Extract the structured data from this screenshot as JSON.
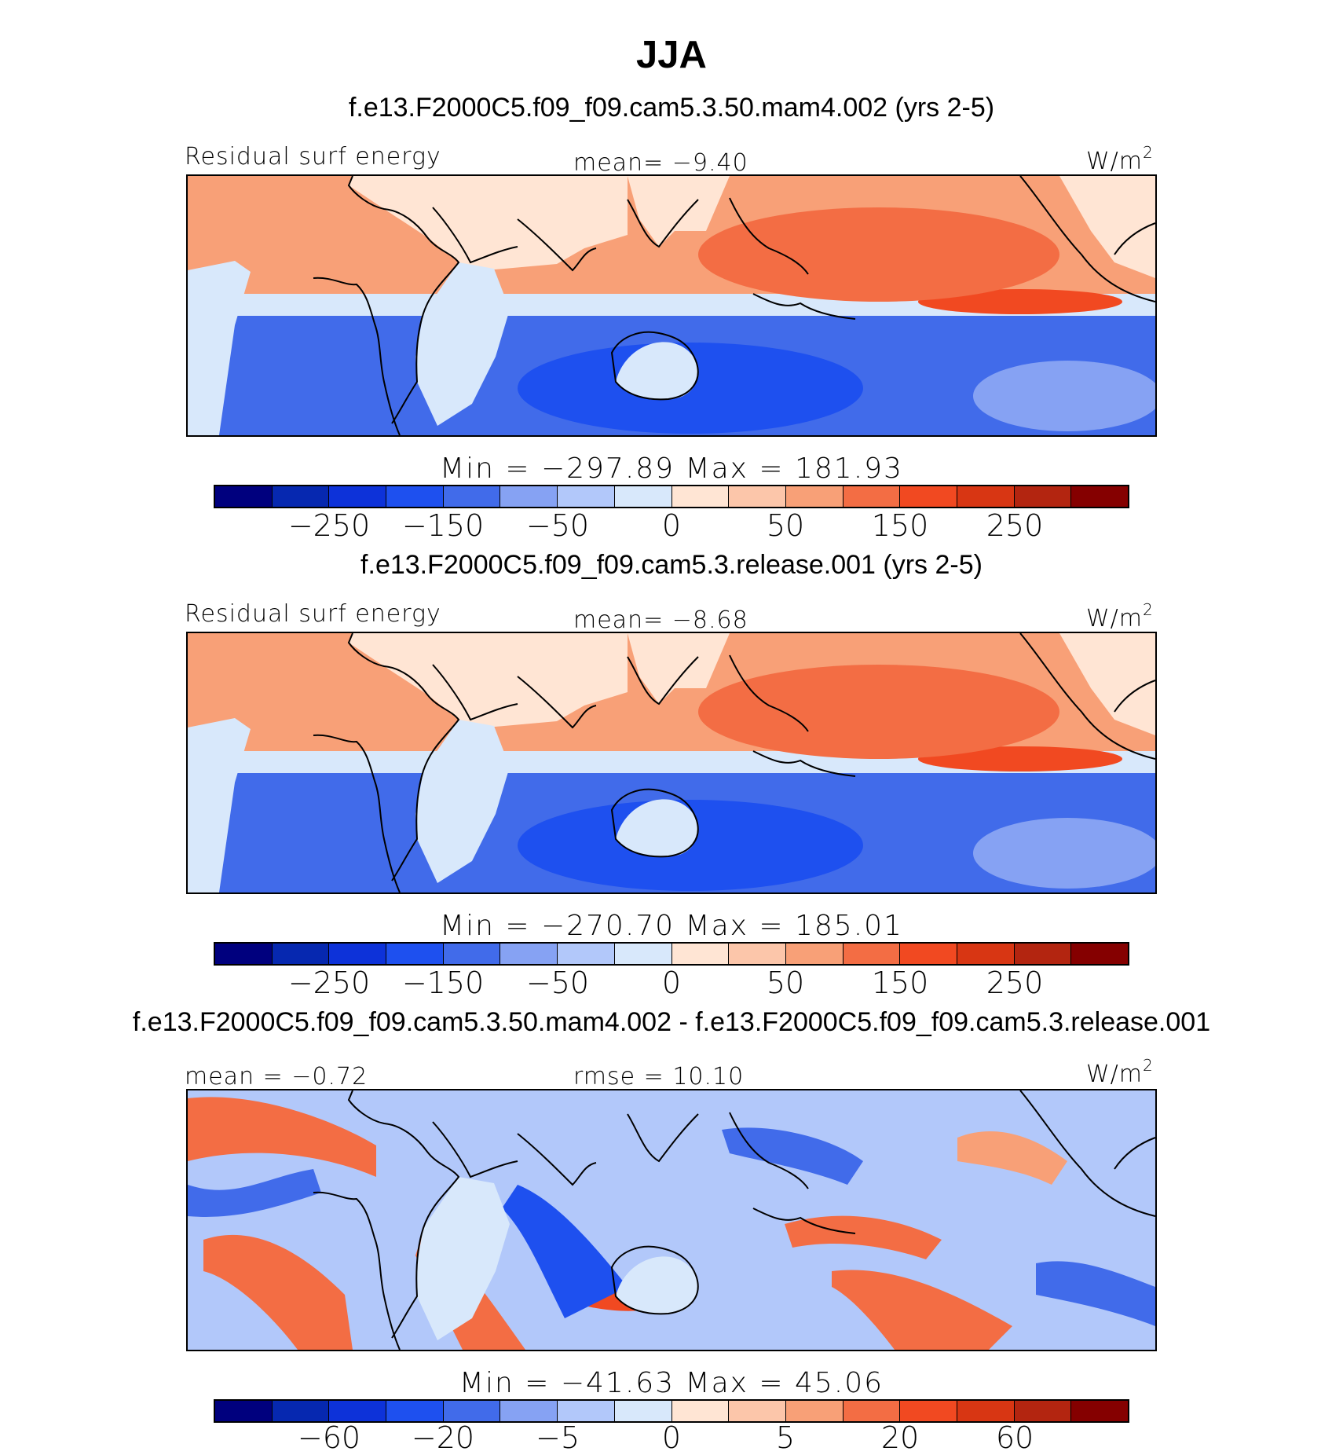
{
  "figure": {
    "season": "JJA"
  },
  "colors": {
    "scale": [
      "#00007e",
      "#0628b0",
      "#0d32d9",
      "#1e50ef",
      "#416bea",
      "#86a2f3",
      "#b2c8fa",
      "#d8e8fb",
      "#ffe5d4",
      "#fcc6aa",
      "#f8a077",
      "#f36d44",
      "#f14921",
      "#d83613",
      "#b32510",
      "#850000"
    ],
    "coast": "#000000",
    "frame": "#000000"
  },
  "panels": [
    {
      "title": "f.e13.F2000C5.f09_f09.cam5.3.50.mam4.002 (yrs 2-5)",
      "left_label": "Residual surf energy",
      "center_label": "mean=  −9.40",
      "units": "W/m",
      "units_sup": "2",
      "minmax": "Min = −297.89 Max = 181.93",
      "colorbar_ticks": [
        "−250",
        "−150",
        "−50",
        "0",
        "50",
        "150",
        "250"
      ],
      "field": "model"
    },
    {
      "title": "f.e13.F2000C5.f09_f09.cam5.3.release.001 (yrs 2-5)",
      "left_label": "Residual surf energy",
      "center_label": "mean=  −8.68",
      "units": "W/m",
      "units_sup": "2",
      "minmax": "Min = −270.70 Max = 185.01",
      "colorbar_ticks": [
        "−250",
        "−150",
        "−50",
        "0",
        "50",
        "150",
        "250"
      ],
      "field": "model"
    },
    {
      "title": "f.e13.F2000C5.f09_f09.cam5.3.50.mam4.002 - f.e13.F2000C5.f09_f09.cam5.3.release.001",
      "left_label": "mean =  −0.72",
      "center_label": "rmse =  10.10",
      "units": "W/m",
      "units_sup": "2",
      "minmax": "Min = −41.63 Max =  45.06",
      "colorbar_ticks": [
        "−60",
        "−20",
        "−5",
        "0",
        "5",
        "20",
        "60"
      ],
      "field": "difference"
    }
  ],
  "chart_data": [
    {
      "type": "heatmap",
      "title": "f.e13.F2000C5.f09_f09.cam5.3.50.mam4.002 (yrs 2-5)",
      "variable": "Residual surf energy",
      "units": "W/m2",
      "mean": -9.4,
      "min": -297.89,
      "max": 181.93,
      "colorbar_ticks": [
        -250,
        -150,
        -50,
        0,
        50,
        150,
        250
      ]
    },
    {
      "type": "heatmap",
      "title": "f.e13.F2000C5.f09_f09.cam5.3.release.001 (yrs 2-5)",
      "variable": "Residual surf energy",
      "units": "W/m2",
      "mean": -8.68,
      "min": -270.7,
      "max": 185.01,
      "colorbar_ticks": [
        -250,
        -150,
        -50,
        0,
        50,
        150,
        250
      ]
    },
    {
      "type": "heatmap",
      "title": "f.e13.F2000C5.f09_f09.cam5.3.50.mam4.002 - f.e13.F2000C5.f09_f09.cam5.3.release.001",
      "units": "W/m2",
      "mean": -0.72,
      "rmse": 10.1,
      "min": -41.63,
      "max": 45.06,
      "colorbar_ticks": [
        -60,
        -20,
        -5,
        0,
        5,
        20,
        60
      ]
    }
  ]
}
